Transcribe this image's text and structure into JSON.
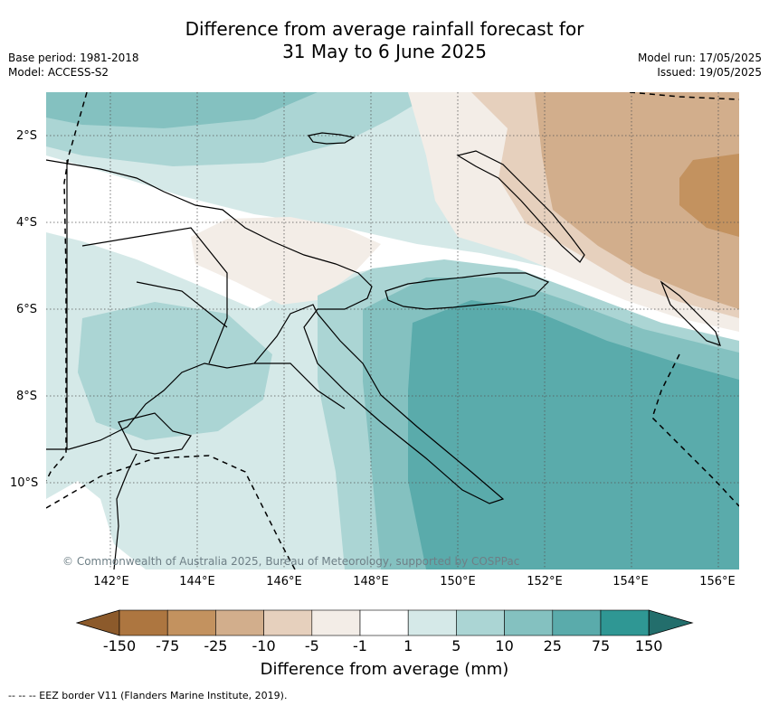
{
  "title": {
    "line1": "Difference from average rainfall forecast for",
    "line2": "31 May to 6 June 2025"
  },
  "meta": {
    "base_period": "Base period: 1981-2018",
    "model": "Model: ACCESS-S2",
    "model_run": "Model run: 17/05/2025",
    "issued": "Issued: 19/05/2025"
  },
  "map": {
    "copyright": "© Commonwealth of Australia 2025, Bureau of Meteorology, supported by COSPPac",
    "lat_labels": [
      "2°S",
      "4°S",
      "6°S",
      "8°S",
      "10°S"
    ],
    "lon_labels": [
      "142°E",
      "144°E",
      "146°E",
      "148°E",
      "150°E",
      "152°E",
      "154°E",
      "156°E"
    ],
    "graticule": "dotted",
    "eez_border": "dashed"
  },
  "colorbar": {
    "title": "Difference from average (mm)",
    "ticks": [
      "-150",
      "-75",
      "-25",
      "-10",
      "-5",
      "-1",
      "1",
      "5",
      "10",
      "25",
      "75",
      "150"
    ],
    "colors": [
      "#8c5a2b",
      "#ad7640",
      "#c3925f",
      "#d2ae8c",
      "#e6d0bd",
      "#f3ede7",
      "#ffffff",
      "#d5e9e8",
      "#abd5d4",
      "#84c1c0",
      "#5aabab",
      "#2f9794",
      "#236e6c"
    ]
  },
  "footer": "--  --  -- EEZ border V11 (Flanders Marine Institute, 2019)."
}
